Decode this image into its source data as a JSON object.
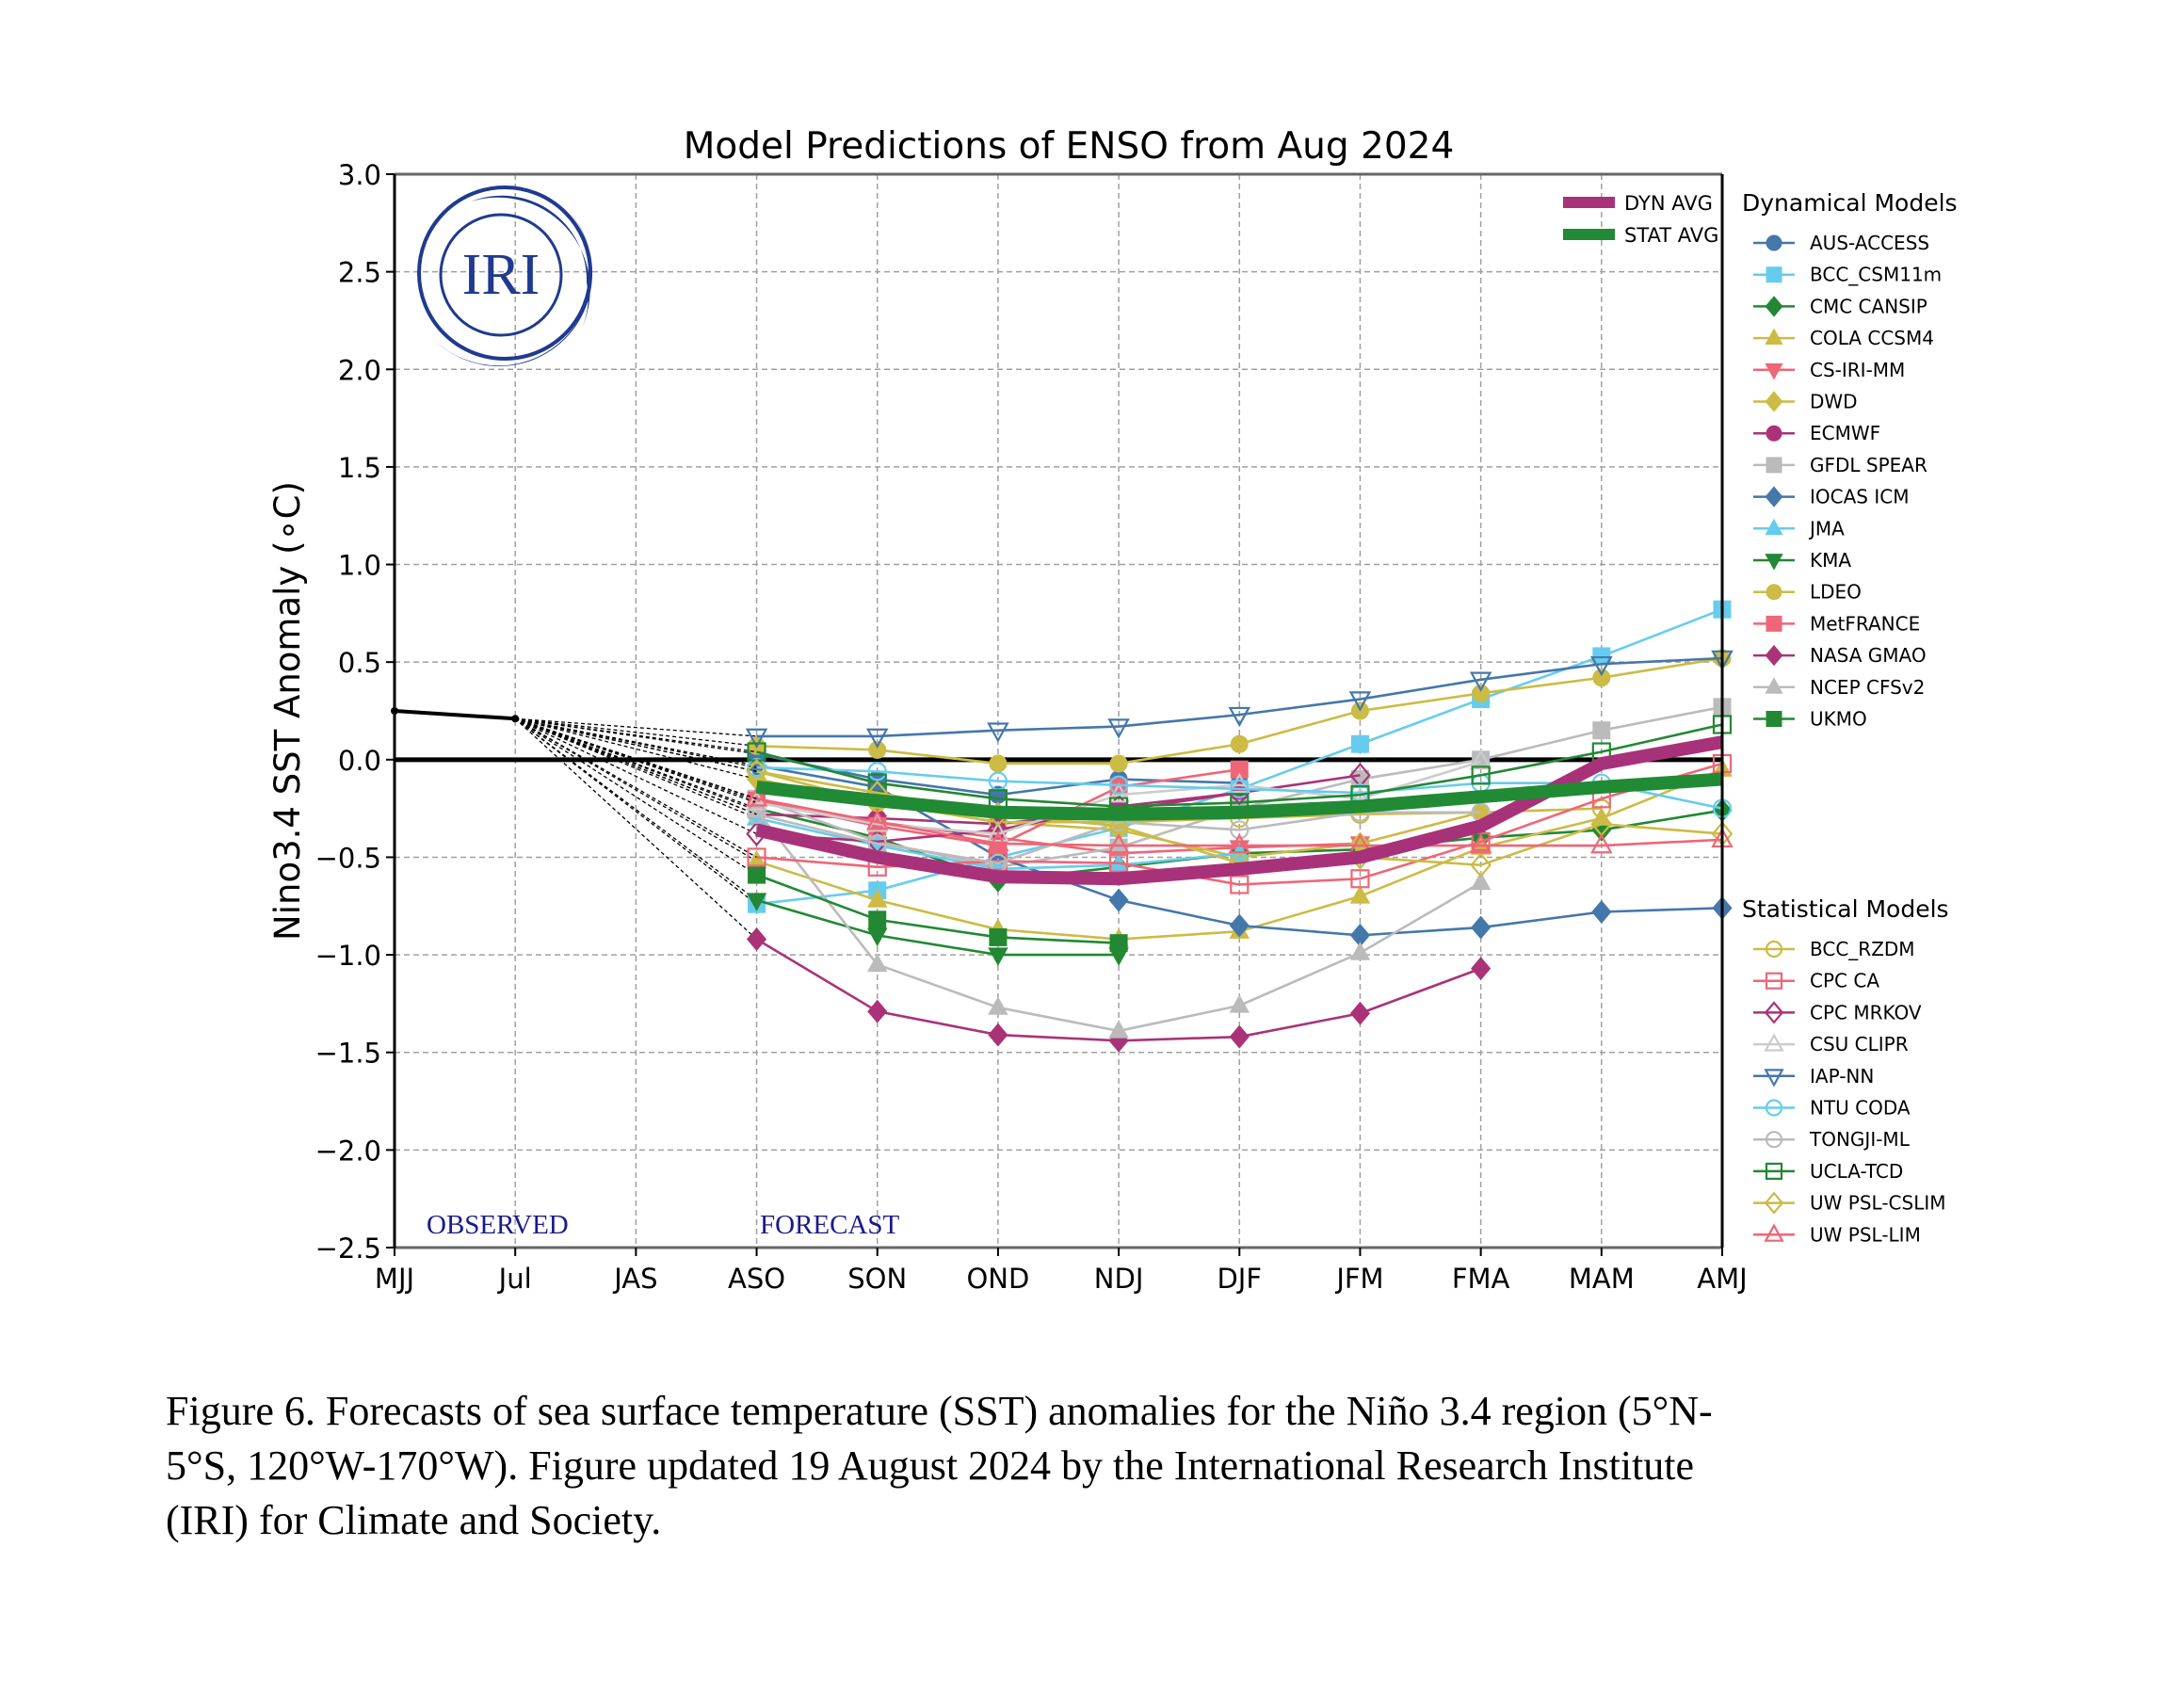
{
  "chart_data": {
    "type": "line",
    "title": "Model Predictions of ENSO from Aug 2024",
    "xlabel": "",
    "ylabel": "Nino3.4 SST Anomaly (∘C)",
    "ylim": [
      -2.5,
      3.0
    ],
    "yticks": [
      3.0,
      2.5,
      2.0,
      1.5,
      1.0,
      0.5,
      0.0,
      -0.5,
      -1.0,
      -1.5,
      -2.0,
      -2.5
    ],
    "ytick_labels": [
      "3.0",
      "2.5",
      "2.0",
      "1.5",
      "1.0",
      "0.5",
      "0.0",
      "−0.5",
      "−1.0",
      "−1.5",
      "−2.0",
      "−2.5"
    ],
    "categories": [
      "MJJ",
      "Jul",
      "JAS",
      "ASO",
      "SON",
      "OND",
      "NDJ",
      "DJF",
      "JFM",
      "FMA",
      "MAM",
      "AMJ"
    ],
    "grid": true,
    "zero_line": true,
    "logo_text": "IRI",
    "annotations": [
      {
        "text": "OBSERVED",
        "color": "#1a1a8c"
      },
      {
        "text": "FORECAST",
        "color": "#1a1a8c"
      }
    ],
    "observed": {
      "name": "Observed",
      "x": [
        "MJJ",
        "Jul"
      ],
      "values": [
        0.25,
        0.21
      ],
      "color": "#000000"
    },
    "averages": [
      {
        "name": "DYN AVG",
        "color": "#a83279",
        "start": "ASO",
        "values": [
          -0.36,
          -0.5,
          -0.6,
          -0.61,
          -0.56,
          -0.5,
          -0.34,
          -0.02,
          0.09
        ]
      },
      {
        "name": "STAT AVG",
        "color": "#218a35",
        "start": "ASO",
        "values": [
          -0.14,
          -0.21,
          -0.27,
          -0.28,
          -0.27,
          -0.24,
          -0.19,
          -0.14,
          -0.1
        ]
      }
    ],
    "legend": {
      "averages_placement": "top-right-inside",
      "dynamical_title": "Dynamical Models",
      "statistical_title": "Statistical Models",
      "placement": "right-outside"
    },
    "dynamical_models": [
      {
        "name": "AUS-ACCESS",
        "color": "#4477aa",
        "marker": "circle",
        "filled": true,
        "start": "ASO",
        "values": [
          0.03,
          -0.1,
          -0.18,
          -0.1,
          -0.12,
          null,
          null,
          null,
          null
        ]
      },
      {
        "name": "BCC_CSM11m",
        "color": "#66ccee",
        "marker": "square",
        "filled": true,
        "start": "ASO",
        "values": [
          -0.74,
          -0.67,
          -0.5,
          -0.35,
          -0.15,
          0.08,
          0.31,
          0.53,
          0.77
        ]
      },
      {
        "name": "CMC CANSIP",
        "color": "#228833",
        "marker": "diamond",
        "filled": true,
        "start": "ASO",
        "values": [
          -0.25,
          -0.4,
          -0.62,
          -0.55,
          -0.48,
          -0.46,
          -0.4,
          -0.36,
          -0.26
        ]
      },
      {
        "name": "COLA CCSM4",
        "color": "#ccbb44",
        "marker": "triangle-up",
        "filled": true,
        "start": "ASO",
        "values": [
          -0.52,
          -0.72,
          -0.87,
          -0.92,
          -0.88,
          -0.7,
          -0.45,
          -0.3,
          -0.05
        ]
      },
      {
        "name": "CS-IRI-MM",
        "color": "#ee6677",
        "marker": "triangle-down",
        "filled": true,
        "start": "ASO",
        "values": [
          -0.2,
          -0.32,
          -0.4,
          -0.48,
          -0.45,
          -0.43,
          null,
          null,
          null
        ]
      },
      {
        "name": "DWD",
        "color": "#ccbb44",
        "marker": "diamond",
        "filled": true,
        "start": "ASO",
        "values": [
          -0.1,
          -0.22,
          -0.32,
          -0.36,
          -0.5,
          -0.43,
          -0.27,
          null,
          null
        ]
      },
      {
        "name": "ECMWF",
        "color": "#aa3377",
        "marker": "circle",
        "filled": true,
        "start": "ASO",
        "values": [
          -0.28,
          -0.3,
          -0.33,
          -0.26,
          -0.17,
          null,
          null,
          null,
          null
        ]
      },
      {
        "name": "GFDL SPEAR",
        "color": "#bbbbbb",
        "marker": "square",
        "filled": true,
        "start": "ASO",
        "values": [
          -0.2,
          -0.42,
          -0.55,
          -0.45,
          -0.25,
          -0.1,
          0.0,
          0.15,
          0.27
        ]
      },
      {
        "name": "IOCAS ICM",
        "color": "#4477aa",
        "marker": "diamond",
        "filled": true,
        "start": "ASO",
        "values": [
          -0.03,
          -0.14,
          -0.5,
          -0.72,
          -0.85,
          -0.9,
          -0.86,
          -0.78,
          -0.76
        ]
      },
      {
        "name": "JMA",
        "color": "#66ccee",
        "marker": "triangle-up",
        "filled": true,
        "start": "ASO",
        "values": [
          -0.3,
          -0.44,
          -0.56,
          -0.54,
          -0.48,
          null,
          null,
          null,
          null
        ]
      },
      {
        "name": "KMA",
        "color": "#228833",
        "marker": "triangle-down",
        "filled": true,
        "start": "ASO",
        "values": [
          -0.72,
          -0.9,
          -1.0,
          -1.0,
          null,
          null,
          null,
          null,
          null
        ]
      },
      {
        "name": "LDEO",
        "color": "#ccbb44",
        "marker": "circle",
        "filled": true,
        "start": "ASO",
        "values": [
          0.07,
          0.05,
          -0.02,
          -0.02,
          0.08,
          0.25,
          0.34,
          0.42,
          0.52
        ]
      },
      {
        "name": "MetFRANCE",
        "color": "#ee6677",
        "marker": "square",
        "filled": true,
        "start": "ASO",
        "values": [
          -0.21,
          -0.34,
          -0.44,
          -0.14,
          -0.05,
          null,
          null,
          null,
          null
        ]
      },
      {
        "name": "NASA GMAO",
        "color": "#aa3377",
        "marker": "diamond",
        "filled": true,
        "start": "ASO",
        "values": [
          -0.92,
          -1.29,
          -1.41,
          -1.44,
          -1.42,
          -1.3,
          -1.07,
          null,
          null
        ]
      },
      {
        "name": "NCEP CFSv2",
        "color": "#bbbbbb",
        "marker": "triangle-up",
        "filled": true,
        "start": "ASO",
        "values": [
          -0.26,
          -1.05,
          -1.27,
          -1.39,
          -1.26,
          -0.99,
          -0.63,
          null,
          null
        ]
      },
      {
        "name": "UKMO",
        "color": "#228833",
        "marker": "square",
        "filled": true,
        "start": "ASO",
        "values": [
          -0.59,
          -0.82,
          -0.91,
          -0.94,
          null,
          null,
          null,
          null,
          null
        ]
      }
    ],
    "statistical_models": [
      {
        "name": "BCC_RZDM",
        "color": "#ccbb44",
        "marker": "circle",
        "filled": false,
        "start": "ASO",
        "values": [
          -0.06,
          -0.22,
          -0.32,
          -0.32,
          -0.3,
          -0.28,
          -0.27,
          -0.25,
          null
        ]
      },
      {
        "name": "CPC CA",
        "color": "#ee6677",
        "marker": "square",
        "filled": false,
        "start": "ASO",
        "values": [
          -0.5,
          -0.55,
          -0.52,
          -0.53,
          -0.64,
          -0.61,
          -0.42,
          -0.2,
          -0.02
        ]
      },
      {
        "name": "CPC MRKOV",
        "color": "#aa3377",
        "marker": "diamond",
        "filled": false,
        "start": "ASO",
        "values": [
          -0.38,
          -0.42,
          -0.36,
          -0.24,
          -0.17,
          -0.08,
          null,
          null,
          null
        ]
      },
      {
        "name": "CSU CLIPR",
        "color": "#cccccc",
        "marker": "triangle-up",
        "filled": false,
        "start": "ASO",
        "values": [
          -0.22,
          -0.33,
          -0.38,
          -0.18,
          -0.13,
          -0.2,
          -0.01,
          null,
          null
        ]
      },
      {
        "name": "IAP-NN",
        "color": "#4477aa",
        "marker": "triangle-down",
        "filled": false,
        "start": "ASO",
        "values": [
          0.12,
          0.12,
          0.15,
          0.17,
          0.23,
          0.31,
          0.41,
          0.49,
          0.52
        ]
      },
      {
        "name": "NTU CODA",
        "color": "#66ccee",
        "marker": "circle",
        "filled": false,
        "start": "ASO",
        "values": [
          -0.04,
          -0.06,
          -0.11,
          -0.13,
          -0.15,
          -0.17,
          -0.12,
          -0.12,
          -0.25
        ]
      },
      {
        "name": "TONGJI-ML",
        "color": "#bbbbbb",
        "marker": "circle",
        "filled": false,
        "start": "ASO",
        "values": [
          -0.28,
          -0.43,
          -0.53,
          -0.32,
          -0.36,
          -0.27,
          -0.27,
          null,
          null
        ]
      },
      {
        "name": "UCLA-TCD",
        "color": "#228833",
        "marker": "square",
        "filled": false,
        "start": "ASO",
        "values": [
          0.04,
          -0.12,
          -0.2,
          -0.24,
          -0.22,
          -0.18,
          -0.08,
          0.04,
          0.18
        ]
      },
      {
        "name": "UW PSL-CSLIM",
        "color": "#ccbb44",
        "marker": "diamond",
        "filled": false,
        "start": "ASO",
        "values": [
          -0.06,
          -0.17,
          -0.28,
          -0.34,
          -0.53,
          -0.5,
          -0.54,
          -0.33,
          -0.38
        ]
      },
      {
        "name": "UW PSL-LIM",
        "color": "#ee6677",
        "marker": "triangle-up",
        "filled": false,
        "start": "ASO",
        "values": [
          -0.2,
          -0.32,
          -0.43,
          -0.44,
          -0.44,
          -0.44,
          -0.44,
          -0.44,
          -0.41
        ]
      }
    ]
  },
  "caption": {
    "line1": "Figure 6. Forecasts of sea surface temperature (SST) anomalies for the Niño 3.4 region (5°N-",
    "line2": "5°S, 120°W-170°W). Figure updated 19 August 2024 by the International Research Institute",
    "line3": "(IRI) for Climate and Society."
  }
}
